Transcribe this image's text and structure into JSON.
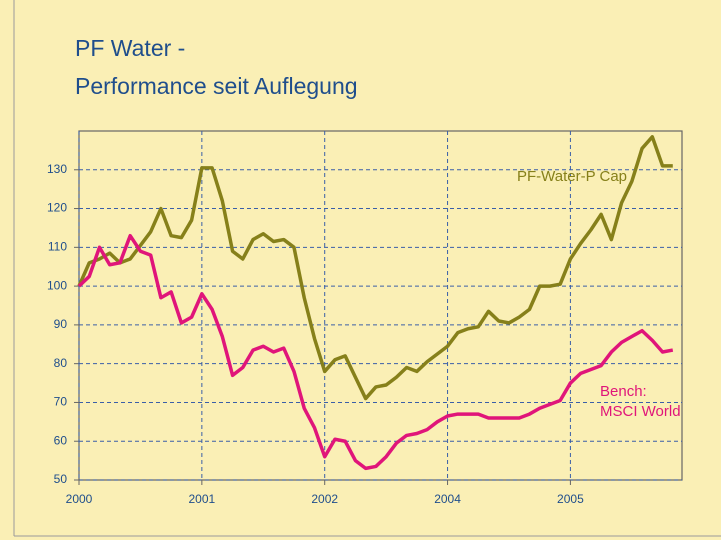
{
  "chart_data": {
    "type": "line",
    "title": "PF Water -",
    "subtitle": "Performance seit Auflegung",
    "x": [
      0,
      1,
      2,
      3,
      4,
      5,
      6,
      7,
      8,
      9,
      10,
      11,
      12,
      13,
      14,
      15,
      16,
      17,
      18,
      19,
      20,
      21,
      22,
      23,
      24,
      25,
      26,
      27,
      28,
      29,
      30,
      31,
      32,
      33,
      34,
      35,
      36,
      37,
      38,
      39,
      40,
      41,
      42,
      43,
      44,
      45,
      46,
      47,
      48,
      49,
      50,
      51,
      52,
      53,
      54,
      55,
      56,
      57,
      58
    ],
    "series": [
      {
        "name": "PF-Water-P Cap",
        "color": "#86801a",
        "values": [
          100,
          106,
          107,
          108.5,
          106,
          107,
          110.5,
          114,
          120,
          113,
          112.5,
          117,
          130.5,
          130.5,
          122,
          109,
          107,
          112,
          113.5,
          111.5,
          112,
          110,
          97,
          86.5,
          78,
          81,
          82,
          76.5,
          71,
          74,
          74.5,
          76.5,
          79,
          78,
          80.5,
          82.5,
          84.5,
          88,
          89,
          89.5,
          93.5,
          91,
          90.5,
          92,
          94,
          100,
          100,
          100.5,
          107,
          111,
          114.5,
          118.5,
          112,
          121.5,
          127,
          135.5,
          138.5,
          131,
          131
        ]
      },
      {
        "name": "Bench: MSCI World",
        "color": "#e0157a",
        "values": [
          100,
          102.5,
          110,
          105.5,
          106,
          113,
          109,
          108,
          97,
          98.5,
          90.5,
          92,
          98,
          94,
          87,
          77,
          79,
          83.5,
          84.5,
          83,
          84,
          78,
          68.5,
          63.5,
          56,
          60.5,
          60,
          55,
          53,
          53.5,
          56,
          59.5,
          61.5,
          62,
          63,
          65,
          66.5,
          67,
          67,
          67,
          66,
          66,
          66,
          66,
          67,
          68.5,
          69.5,
          70.5,
          75,
          77.5,
          78.5,
          79.5,
          83,
          85.5,
          87,
          88.5,
          86,
          83,
          83.5
        ]
      }
    ],
    "annotations": [
      "PF-Water-P Cap",
      "Bench:",
      "MSCI World"
    ],
    "xlim": [
      0,
      58.9
    ],
    "xticks": [
      {
        "value": 0,
        "label": "2000"
      },
      {
        "value": 12,
        "label": "2001"
      },
      {
        "value": 24,
        "label": "2002"
      },
      {
        "value": 36,
        "label": "2004"
      },
      {
        "value": 48,
        "label": "2005"
      }
    ],
    "ylim": [
      50,
      140
    ],
    "yticks": [
      50,
      60,
      70,
      80,
      90,
      100,
      110,
      120,
      130
    ],
    "grid": true
  }
}
